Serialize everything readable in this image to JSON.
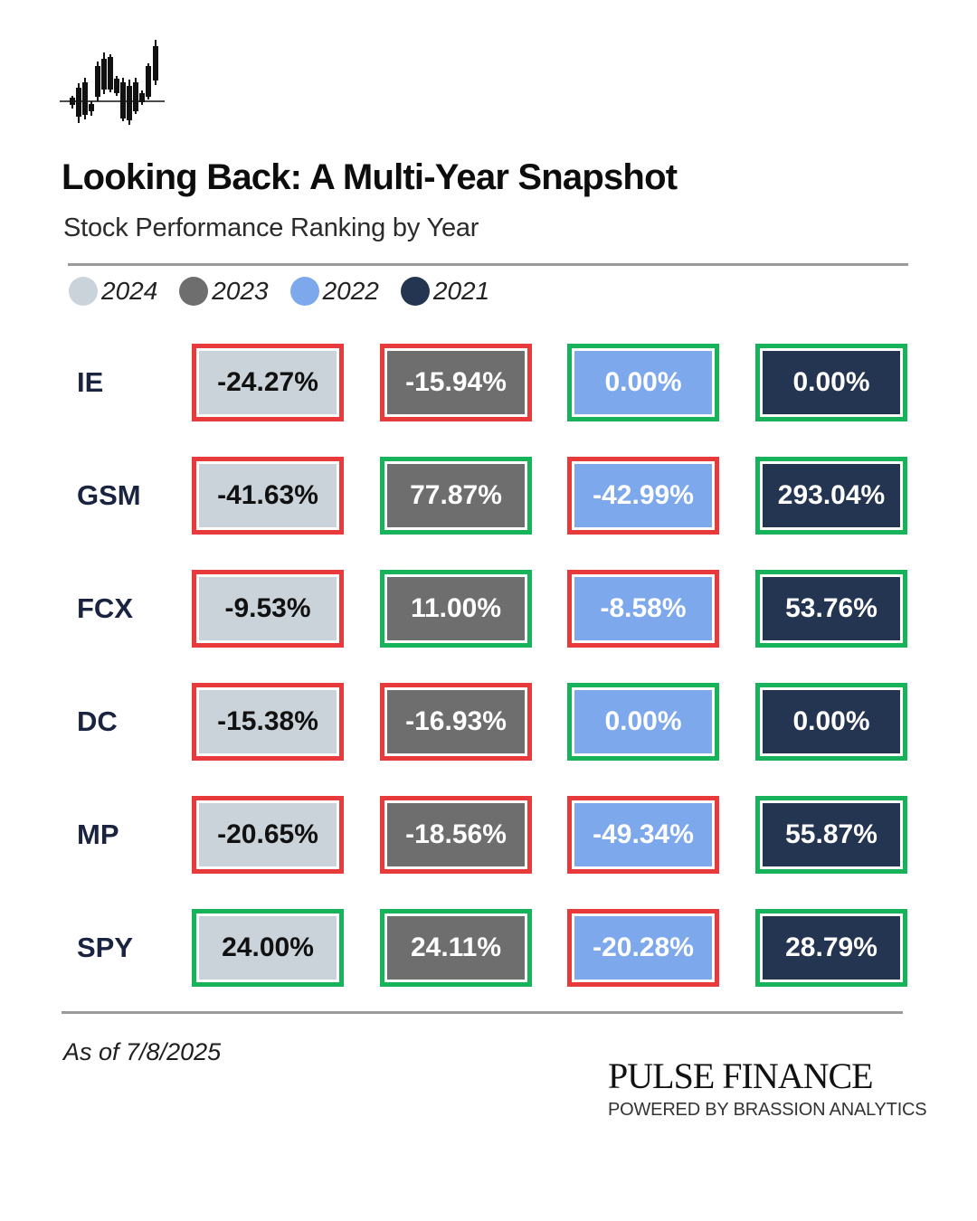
{
  "chart_data": {
    "type": "table",
    "title": "Looking Back: A Multi-Year Snapshot",
    "subtitle": "Stock Performance Ranking by Year",
    "series": [
      {
        "name": "2024",
        "color": "#cbd3da",
        "text_color": "#111111"
      },
      {
        "name": "2023",
        "color": "#6e6e6e",
        "text_color": "#ffffff"
      },
      {
        "name": "2022",
        "color": "#7ea8ec",
        "text_color": "#ffffff"
      },
      {
        "name": "2021",
        "color": "#243552",
        "text_color": "#ffffff"
      }
    ],
    "rows": [
      {
        "ticker": "IE",
        "values": [
          -24.27,
          -15.94,
          0.0,
          0.0
        ],
        "labels": [
          "-24.27%",
          "-15.94%",
          "0.00%",
          "0.00%"
        ]
      },
      {
        "ticker": "GSM",
        "values": [
          -41.63,
          77.87,
          -42.99,
          293.04
        ],
        "labels": [
          "-41.63%",
          "77.87%",
          "-42.99%",
          "293.04%"
        ]
      },
      {
        "ticker": "FCX",
        "values": [
          -9.53,
          11.0,
          -8.58,
          53.76
        ],
        "labels": [
          "-9.53%",
          "11.00%",
          "-8.58%",
          "53.76%"
        ]
      },
      {
        "ticker": "DC",
        "values": [
          -15.38,
          -16.93,
          0.0,
          0.0
        ],
        "labels": [
          "-15.38%",
          "-16.93%",
          "0.00%",
          "0.00%"
        ]
      },
      {
        "ticker": "MP",
        "values": [
          -20.65,
          -18.56,
          -49.34,
          55.87
        ],
        "labels": [
          "-20.65%",
          "-18.56%",
          "-49.34%",
          "55.87%"
        ]
      },
      {
        "ticker": "SPY",
        "values": [
          24.0,
          24.11,
          -20.28,
          28.79
        ],
        "labels": [
          "24.00%",
          "24.11%",
          "-20.28%",
          "28.79%"
        ]
      }
    ],
    "border_colors": {
      "positive": "#16b35a",
      "negative": "#e83a3a"
    }
  },
  "footer": {
    "as_of": "As of 7/8/2025",
    "brand": "PULSE FINANCE",
    "brand_sub": "POWERED BY BRASSION ANALYTICS"
  },
  "logo": {
    "icon": "candlestick-chart-icon"
  }
}
